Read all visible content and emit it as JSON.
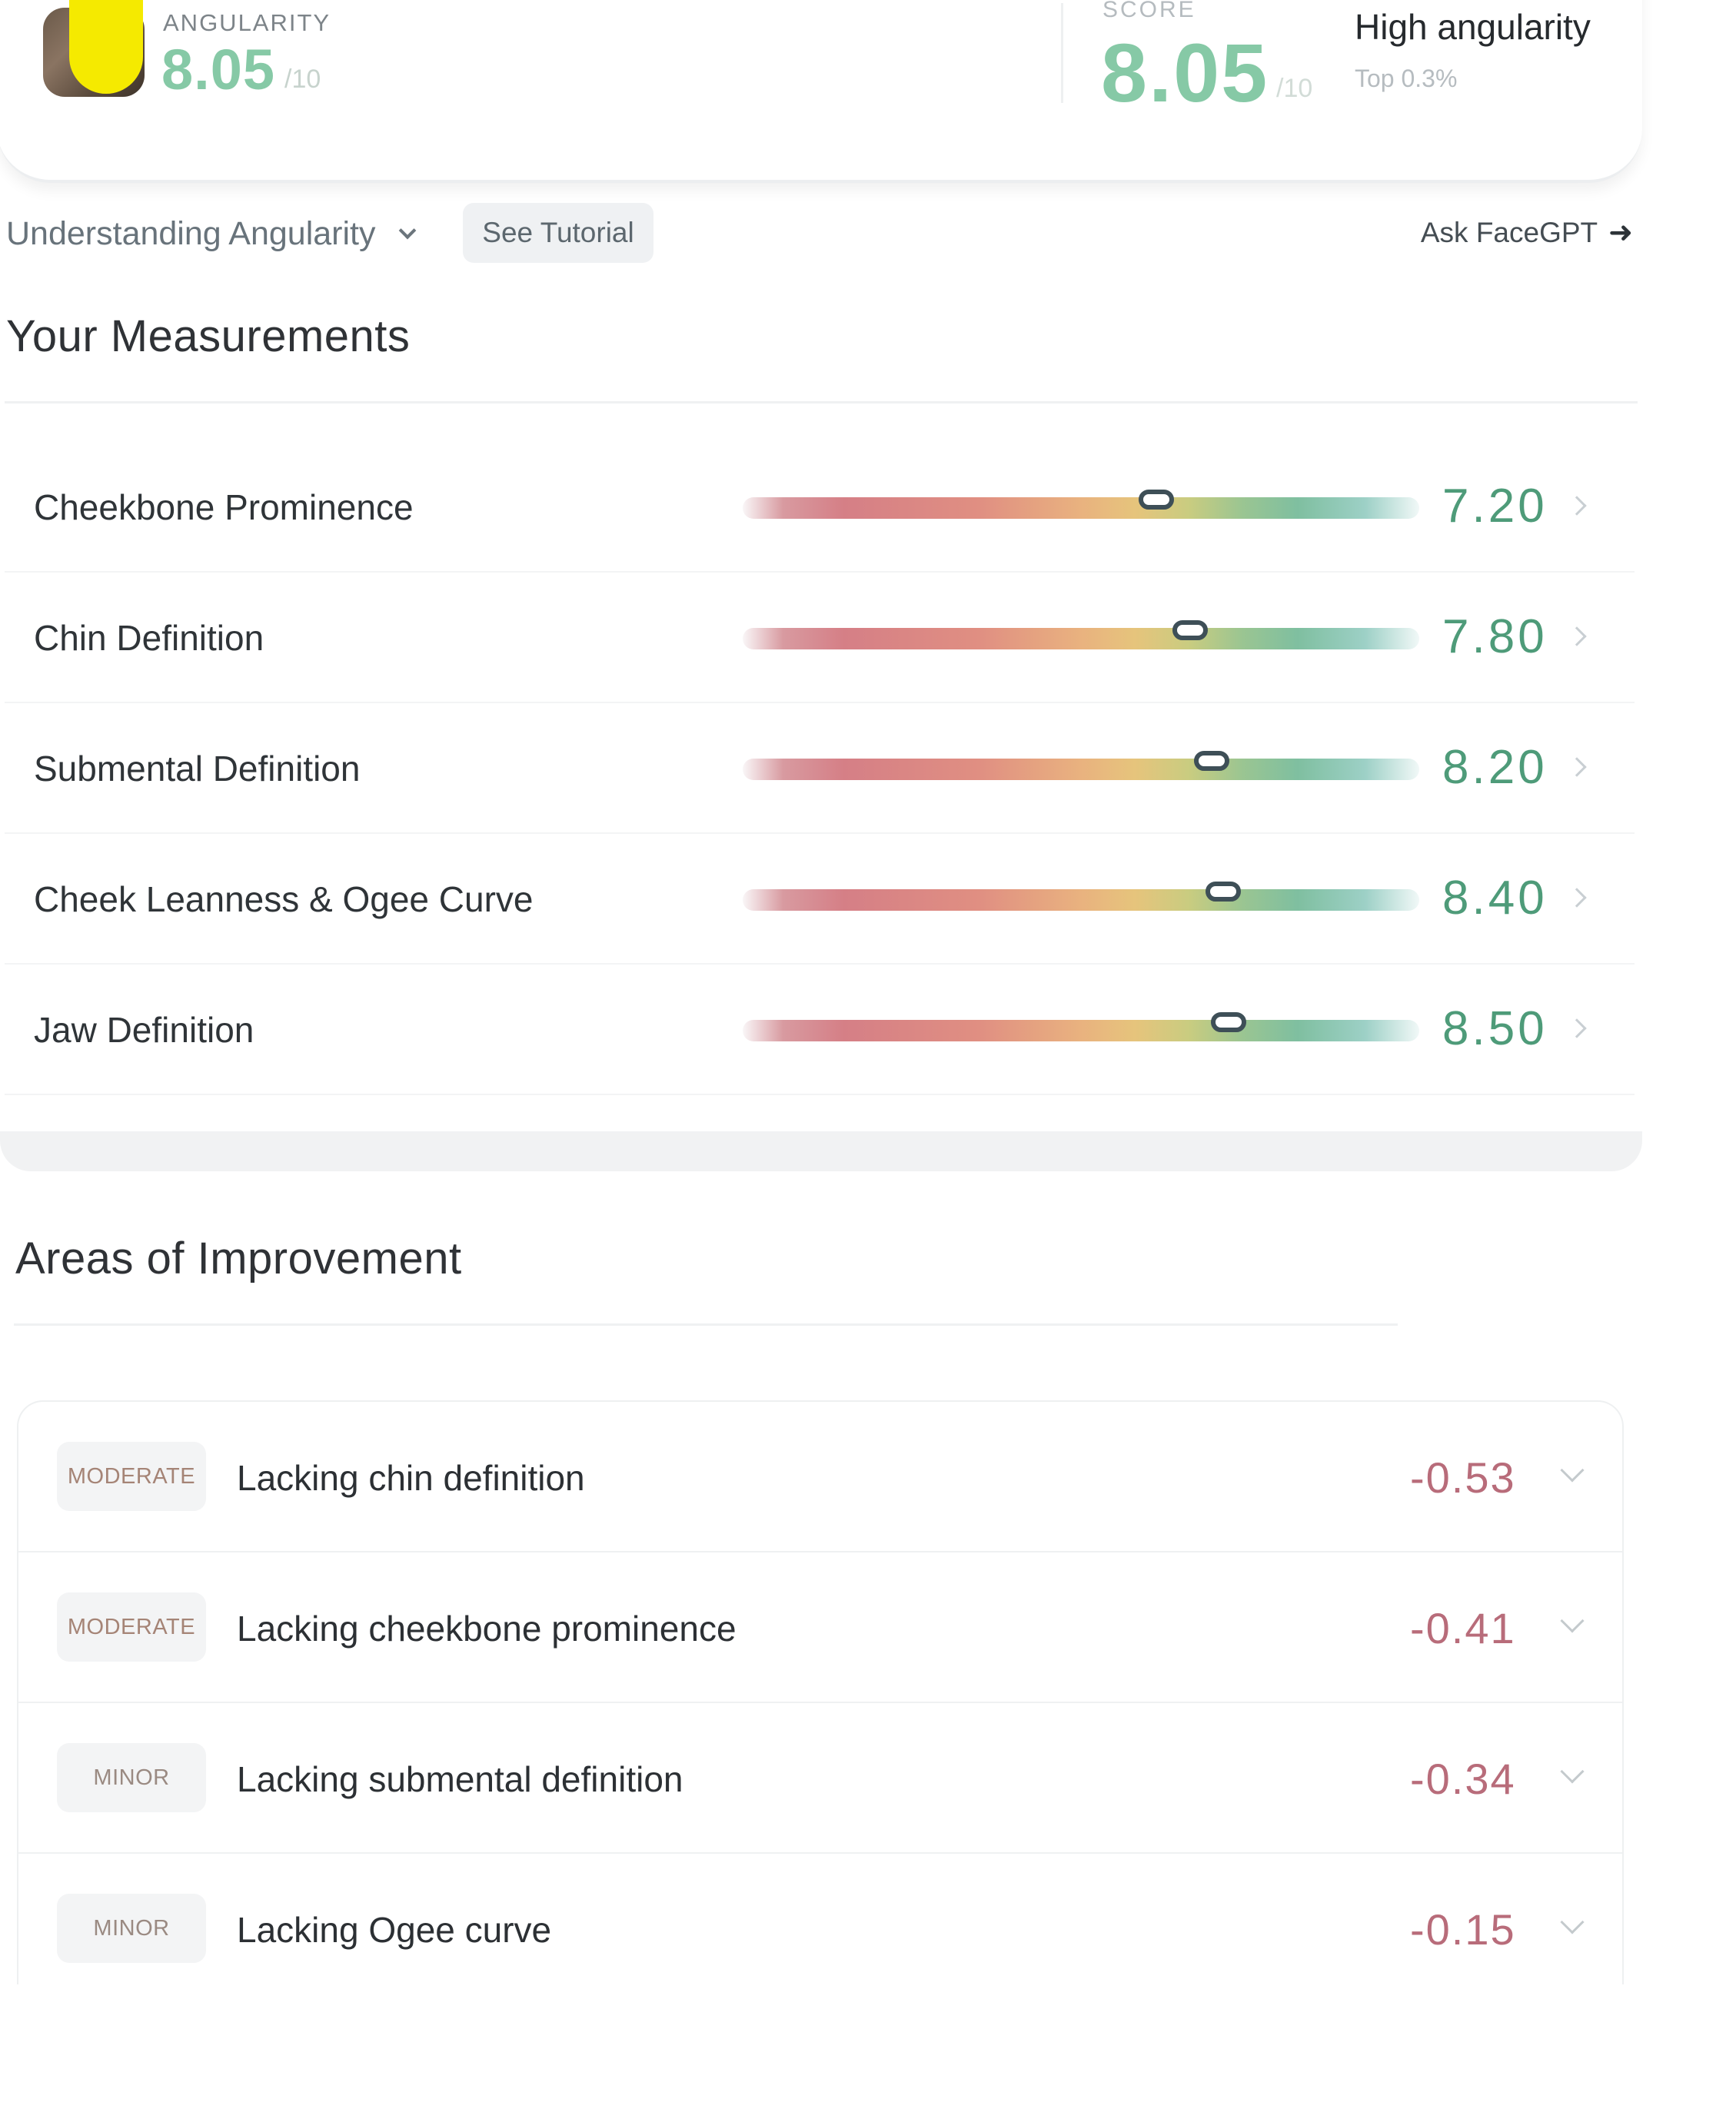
{
  "header": {
    "metric_label": "ANGULARITY",
    "metric_value": "8.05",
    "metric_denominator": "/10",
    "score_label": "SCORE",
    "score_value": "8.05",
    "score_denominator": "/10",
    "tier": "High angularity",
    "rank": "Top 0.3%",
    "avatar_icon": "user-photo",
    "accent_color": "#86c9a6"
  },
  "toolbar": {
    "topic_select": "Understanding Angularity",
    "tutorial_label": "See Tutorial",
    "ask_label": "Ask FaceGPT",
    "ask_icon": "arrow-right-icon"
  },
  "measurements": {
    "title": "Your Measurements",
    "max": 10,
    "items": [
      {
        "name": "Cheekbone Prominence",
        "value": "7.20",
        "level": 7.2
      },
      {
        "name": "Chin Definition",
        "value": "7.80",
        "level": 7.8
      },
      {
        "name": "Submental Definition",
        "value": "8.20",
        "level": 8.2
      },
      {
        "name": "Cheek Leanness & Ogee Curve",
        "value": "8.40",
        "level": 8.4
      },
      {
        "name": "Jaw Definition",
        "value": "8.50",
        "level": 8.5
      }
    ]
  },
  "improvements": {
    "title": "Areas of Improvement",
    "items": [
      {
        "severity": "MODERATE",
        "text": "Lacking chin definition",
        "delta": "-0.53"
      },
      {
        "severity": "MODERATE",
        "text": "Lacking cheekbone prominence",
        "delta": "-0.41"
      },
      {
        "severity": "MINOR",
        "text": "Lacking submental definition",
        "delta": "-0.34"
      },
      {
        "severity": "MINOR",
        "text": "Lacking Ogee curve",
        "delta": "-0.15"
      }
    ]
  }
}
